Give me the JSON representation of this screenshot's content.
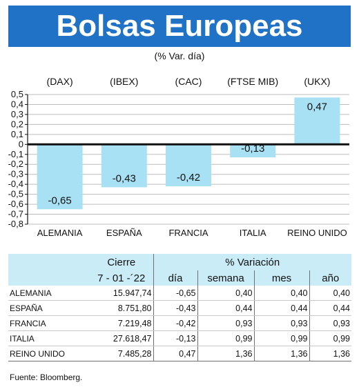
{
  "title": "Bolsas Europeas",
  "subtitle": "(% Var. día)",
  "chart_data": {
    "type": "bar",
    "categories": [
      "ALEMANIA",
      "ESPAÑA",
      "FRANCIA",
      "ITALIA",
      "REINO UNIDO"
    ],
    "indices": [
      "(DAX)",
      "(IBEX)",
      "(CAC)",
      "(FTSE MIB)",
      "(UKX)"
    ],
    "values": [
      -0.65,
      -0.43,
      -0.42,
      -0.13,
      0.47
    ],
    "value_labels": [
      "-0,65",
      "-0,43",
      "-0,42",
      "-0,13",
      "0,47"
    ],
    "ylim": [
      -0.8,
      0.5
    ],
    "yticks": [
      0.5,
      0.4,
      0.3,
      0.2,
      0.1,
      0,
      -0.1,
      -0.2,
      -0.3,
      -0.4,
      -0.5,
      -0.6,
      -0.7,
      -0.8
    ],
    "ytick_labels": [
      "0,5",
      "0,4",
      "0,3",
      "0,2",
      "0,1",
      "0",
      "-0,1",
      "-0,2",
      "-0,3",
      "-0,4",
      "-0,5",
      "-0,6",
      "-0,7",
      "-0,8"
    ],
    "grid": true,
    "bar_color": "#a8e1f4"
  },
  "table": {
    "header_cierre": "Cierre",
    "header_variacion": "% Variación",
    "date": "7 - 01 -´22",
    "col_dia": "día",
    "col_semana": "semana",
    "col_mes": "mes",
    "col_ano": "año",
    "rows": [
      {
        "country": "ALEMANIA",
        "cierre": "15.947,74",
        "dia": "-0,65",
        "semana": "0,40",
        "mes": "0,40",
        "ano": "0,40"
      },
      {
        "country": "ESPAÑA",
        "cierre": "8.751,80",
        "dia": "-0,43",
        "semana": "0,44",
        "mes": "0,44",
        "ano": "0,44"
      },
      {
        "country": "FRANCIA",
        "cierre": "7.219,48",
        "dia": "-0,42",
        "semana": "0,93",
        "mes": "0,93",
        "ano": "0,93"
      },
      {
        "country": "ITALIA",
        "cierre": "27.618,47",
        "dia": "-0,13",
        "semana": "0,99",
        "mes": "0,99",
        "ano": "0,99"
      },
      {
        "country": "REINO UNIDO",
        "cierre": "7.485,28",
        "dia": "0,47",
        "semana": "1,36",
        "mes": "1,36",
        "ano": "1,36"
      }
    ]
  },
  "source": "Fuente: Bloomberg.",
  "colors": {
    "title_bg": "#1f72c6",
    "header_bg": "#c9ecf7",
    "bar": "#a8e1f4"
  }
}
